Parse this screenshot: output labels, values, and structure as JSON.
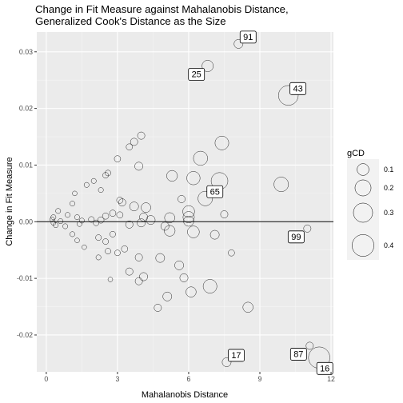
{
  "chart_data": {
    "type": "scatter",
    "title": [
      "Change in Fit Measure against Mahalanobis Distance,",
      "Generalized Cook's Distance as the Size"
    ],
    "xlabel": "Mahalanobis Distance",
    "ylabel": "Change in Fit Measure",
    "xlim": [
      -0.4,
      12.1
    ],
    "ylim": [
      -0.0265,
      0.0335
    ],
    "x_ticks": [
      0,
      3,
      6,
      9,
      12
    ],
    "y_ticks": [
      -0.02,
      -0.01,
      0.0,
      0.01,
      0.02,
      0.03
    ],
    "y_tick_labels": [
      "-0.02",
      "-0.01",
      "0.00",
      "0.01",
      "0.02",
      "0.03"
    ],
    "hline": 0,
    "grid": true,
    "legend": {
      "title": "gCD",
      "position": "right",
      "entries": [
        {
          "label": "0.1",
          "value": 0.1
        },
        {
          "label": "0.2",
          "value": 0.2
        },
        {
          "label": "0.3",
          "value": 0.3
        },
        {
          "label": "0.4",
          "value": 0.4
        }
      ]
    },
    "size_range": [
      0.0,
      0.42
    ],
    "points": [
      {
        "x": 8.1,
        "y": 0.0314,
        "size": 0.05
      },
      {
        "x": 6.8,
        "y": 0.0275,
        "size": 0.09
      },
      {
        "x": 10.2,
        "y": 0.0223,
        "size": 0.32
      },
      {
        "x": 7.4,
        "y": 0.0139,
        "size": 0.14
      },
      {
        "x": 6.5,
        "y": 0.0112,
        "size": 0.15
      },
      {
        "x": 9.9,
        "y": 0.0066,
        "size": 0.16
      },
      {
        "x": 7.3,
        "y": 0.0072,
        "size": 0.22
      },
      {
        "x": 6.2,
        "y": 0.0077,
        "size": 0.13
      },
      {
        "x": 5.3,
        "y": 0.0081,
        "size": 0.08
      },
      {
        "x": 6.7,
        "y": 0.0041,
        "size": 0.16
      },
      {
        "x": 6.0,
        "y": 0.0018,
        "size": 0.1
      },
      {
        "x": 6.0,
        "y": 0.0008,
        "size": 0.09
      },
      {
        "x": 6.0,
        "y": 0.0001,
        "size": 0.07
      },
      {
        "x": 5.2,
        "y": 0.0007,
        "size": 0.07
      },
      {
        "x": 5.7,
        "y": 0.004,
        "size": 0.03
      },
      {
        "x": 7.5,
        "y": 0.0013,
        "size": 0.03
      },
      {
        "x": 11.0,
        "y": -0.0012,
        "size": 0.03
      },
      {
        "x": 5.0,
        "y": -0.0008,
        "size": 0.04
      },
      {
        "x": 5.2,
        "y": -0.0016,
        "size": 0.08
      },
      {
        "x": 6.2,
        "y": -0.0018,
        "size": 0.1
      },
      {
        "x": 7.1,
        "y": -0.0023,
        "size": 0.05
      },
      {
        "x": 7.8,
        "y": -0.0055,
        "size": 0.02
      },
      {
        "x": 4.8,
        "y": -0.0064,
        "size": 0.05
      },
      {
        "x": 5.6,
        "y": -0.0077,
        "size": 0.05
      },
      {
        "x": 6.9,
        "y": -0.0114,
        "size": 0.14
      },
      {
        "x": 6.1,
        "y": -0.0124,
        "size": 0.07
      },
      {
        "x": 5.1,
        "y": -0.0132,
        "size": 0.05
      },
      {
        "x": 5.8,
        "y": -0.0099,
        "size": 0.04
      },
      {
        "x": 4.7,
        "y": -0.0152,
        "size": 0.03
      },
      {
        "x": 8.5,
        "y": -0.0151,
        "size": 0.07
      },
      {
        "x": 7.6,
        "y": -0.0248,
        "size": 0.05
      },
      {
        "x": 11.1,
        "y": -0.0219,
        "size": 0.03
      },
      {
        "x": 11.5,
        "y": -0.024,
        "size": 0.38
      },
      {
        "x": 4.0,
        "y": 0.0152,
        "size": 0.03
      },
      {
        "x": 3.7,
        "y": 0.0141,
        "size": 0.03
      },
      {
        "x": 3.5,
        "y": 0.0132,
        "size": 0.02
      },
      {
        "x": 3.0,
        "y": 0.0111,
        "size": 0.02
      },
      {
        "x": 3.9,
        "y": 0.0098,
        "size": 0.04
      },
      {
        "x": 2.6,
        "y": 0.0086,
        "size": 0.015
      },
      {
        "x": 2.5,
        "y": 0.0082,
        "size": 0.015
      },
      {
        "x": 2.0,
        "y": 0.0072,
        "size": 0.01
      },
      {
        "x": 1.7,
        "y": 0.0065,
        "size": 0.01
      },
      {
        "x": 2.3,
        "y": 0.0056,
        "size": 0.01
      },
      {
        "x": 3.1,
        "y": 0.0038,
        "size": 0.02
      },
      {
        "x": 3.2,
        "y": 0.0034,
        "size": 0.03
      },
      {
        "x": 3.7,
        "y": 0.0027,
        "size": 0.05
      },
      {
        "x": 4.2,
        "y": 0.0025,
        "size": 0.06
      },
      {
        "x": 4.1,
        "y": 0.0008,
        "size": 0.04
      },
      {
        "x": 4.0,
        "y": -0.0002,
        "size": 0.04
      },
      {
        "x": 3.5,
        "y": -0.0005,
        "size": 0.03
      },
      {
        "x": 3.1,
        "y": 0.0012,
        "size": 0.02
      },
      {
        "x": 2.8,
        "y": 0.0015,
        "size": 0.02
      },
      {
        "x": 2.5,
        "y": 0.001,
        "size": 0.02
      },
      {
        "x": 2.3,
        "y": 0.0003,
        "size": 0.02
      },
      {
        "x": 2.1,
        "y": -0.0002,
        "size": 0.015
      },
      {
        "x": 1.9,
        "y": 0.0004,
        "size": 0.015
      },
      {
        "x": 1.5,
        "y": 0.0002,
        "size": 0.01
      },
      {
        "x": 1.3,
        "y": 0.0008,
        "size": 0.01
      },
      {
        "x": 1.4,
        "y": -0.0004,
        "size": 0.01
      },
      {
        "x": 1.1,
        "y": 0.0032,
        "size": 0.01
      },
      {
        "x": 1.2,
        "y": 0.005,
        "size": 0.008
      },
      {
        "x": 0.9,
        "y": 0.0012,
        "size": 0.01
      },
      {
        "x": 0.8,
        "y": -0.0008,
        "size": 0.01
      },
      {
        "x": 0.6,
        "y": 0.0001,
        "size": 0.01
      },
      {
        "x": 0.5,
        "y": 0.0019,
        "size": 0.01
      },
      {
        "x": 0.4,
        "y": -0.0006,
        "size": 0.01
      },
      {
        "x": 0.3,
        "y": 0.0008,
        "size": 0.01
      },
      {
        "x": 0.25,
        "y": 0.0004,
        "size": 0.008
      },
      {
        "x": 0.3,
        "y": -0.0002,
        "size": 0.008
      },
      {
        "x": 1.1,
        "y": -0.0022,
        "size": 0.01
      },
      {
        "x": 1.3,
        "y": -0.0033,
        "size": 0.008
      },
      {
        "x": 1.6,
        "y": -0.0045,
        "size": 0.008
      },
      {
        "x": 2.2,
        "y": -0.0028,
        "size": 0.015
      },
      {
        "x": 2.5,
        "y": -0.0035,
        "size": 0.015
      },
      {
        "x": 2.8,
        "y": -0.0022,
        "size": 0.015
      },
      {
        "x": 2.2,
        "y": -0.0063,
        "size": 0.01
      },
      {
        "x": 2.6,
        "y": -0.0052,
        "size": 0.015
      },
      {
        "x": 3.3,
        "y": -0.0048,
        "size": 0.02
      },
      {
        "x": 3.0,
        "y": -0.0055,
        "size": 0.015
      },
      {
        "x": 3.5,
        "y": -0.0088,
        "size": 0.03
      },
      {
        "x": 3.9,
        "y": -0.0063,
        "size": 0.03
      },
      {
        "x": 4.1,
        "y": -0.0097,
        "size": 0.04
      },
      {
        "x": 3.9,
        "y": -0.0105,
        "size": 0.03
      },
      {
        "x": 2.7,
        "y": -0.0102,
        "size": 0.008
      },
      {
        "x": 4.4,
        "y": 0.0003,
        "size": 0.05
      }
    ],
    "labels": [
      {
        "text": "91",
        "x": 8.1,
        "y": 0.0314,
        "dir": "right"
      },
      {
        "text": "25",
        "x": 6.8,
        "y": 0.0275,
        "dir": "left"
      },
      {
        "text": "43",
        "x": 10.2,
        "y": 0.0223,
        "dir": "right"
      },
      {
        "text": "65",
        "x": 6.7,
        "y": 0.0041,
        "dir": "right"
      },
      {
        "text": "99",
        "x": 11.0,
        "y": -0.0012,
        "dir": "left"
      },
      {
        "text": "17",
        "x": 7.6,
        "y": -0.0248,
        "dir": "right"
      },
      {
        "text": "87",
        "x": 11.1,
        "y": -0.0219,
        "dir": "left"
      },
      {
        "text": "16",
        "x": 11.5,
        "y": -0.024,
        "dir": "belowright"
      }
    ]
  }
}
